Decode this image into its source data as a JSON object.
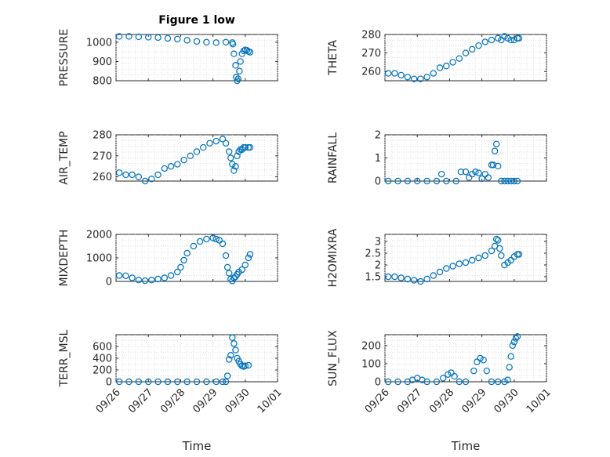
{
  "figure": {
    "title": "Figure 1 low"
  },
  "chart_data": [
    {
      "type": "scatter",
      "ylabel": "PRESSURE",
      "xlim": [
        "09/26",
        "10/01"
      ],
      "ylim": [
        800,
        1040
      ],
      "yticks": [
        800,
        900,
        1000
      ],
      "grid": true,
      "marker_color": "#0072bd",
      "series": [
        {
          "x": [
            0.1,
            0.4,
            0.7,
            1.0,
            1.3,
            1.6,
            1.9,
            2.2,
            2.5,
            2.8,
            3.1,
            3.4,
            3.6,
            3.62,
            3.65,
            3.7,
            3.72,
            3.75,
            3.78,
            3.82,
            3.85,
            3.9,
            3.95,
            4.0,
            4.05,
            4.1,
            4.15
          ],
          "y": [
            1030,
            1030,
            1028,
            1026,
            1024,
            1020,
            1016,
            1010,
            1004,
            1000,
            998,
            1000,
            998,
            990,
            940,
            880,
            820,
            800,
            810,
            850,
            900,
            940,
            955,
            960,
            958,
            952,
            948
          ]
        }
      ]
    },
    {
      "type": "scatter",
      "ylabel": "THETA",
      "xlim": [
        "09/26",
        "10/01"
      ],
      "ylim": [
        255,
        280
      ],
      "yticks": [
        260,
        270,
        280
      ],
      "grid": true,
      "marker_color": "#0072bd",
      "series": [
        {
          "x": [
            0.1,
            0.3,
            0.5,
            0.7,
            0.9,
            1.1,
            1.3,
            1.5,
            1.7,
            1.9,
            2.1,
            2.3,
            2.5,
            2.7,
            2.9,
            3.1,
            3.3,
            3.5,
            3.6,
            3.7,
            3.8,
            3.9,
            4.0,
            4.1,
            4.15
          ],
          "y": [
            259,
            259,
            258,
            257,
            256,
            256,
            257,
            259,
            262,
            263,
            265,
            267,
            270,
            272,
            274,
            276,
            277,
            278,
            277,
            279,
            278,
            277,
            277,
            278,
            278
          ]
        }
      ]
    },
    {
      "type": "scatter",
      "ylabel": "AIR_TEMP",
      "xlim": [
        "09/26",
        "10/01"
      ],
      "ylim": [
        258,
        280
      ],
      "yticks": [
        260,
        270,
        280
      ],
      "grid": true,
      "marker_color": "#0072bd",
      "series": [
        {
          "x": [
            0.1,
            0.3,
            0.5,
            0.7,
            0.9,
            1.1,
            1.3,
            1.5,
            1.7,
            1.9,
            2.1,
            2.3,
            2.5,
            2.7,
            2.9,
            3.1,
            3.3,
            3.4,
            3.5,
            3.55,
            3.6,
            3.65,
            3.7,
            3.75,
            3.8,
            3.85,
            3.9,
            3.95,
            4.0,
            4.1,
            4.15
          ],
          "y": [
            262,
            261,
            261,
            260,
            258,
            259,
            261,
            264,
            265,
            266,
            268,
            270,
            272,
            274,
            276,
            277,
            278,
            276,
            272,
            269,
            266,
            263,
            265,
            270,
            272,
            273,
            273,
            274,
            274,
            274,
            274
          ]
        }
      ]
    },
    {
      "type": "scatter",
      "ylabel": "RAINFALL",
      "xlim": [
        "09/26",
        "10/01"
      ],
      "ylim": [
        0,
        2
      ],
      "yticks": [
        0,
        1,
        2
      ],
      "grid": true,
      "marker_color": "#0072bd",
      "series": [
        {
          "x": [
            0.1,
            0.4,
            0.7,
            1.0,
            1.3,
            1.6,
            1.75,
            1.9,
            2.2,
            2.35,
            2.5,
            2.6,
            2.7,
            2.8,
            2.9,
            3.0,
            3.1,
            3.2,
            3.3,
            3.35,
            3.4,
            3.45,
            3.5,
            3.6,
            3.7,
            3.8,
            3.9,
            4.0,
            4.1
          ],
          "y": [
            0,
            0,
            0,
            0,
            0,
            0,
            0.3,
            0,
            0,
            0.4,
            0.4,
            0.15,
            0.3,
            0.4,
            0.35,
            0.1,
            0.3,
            0.15,
            0.7,
            0.7,
            1.3,
            1.6,
            0.65,
            0,
            0,
            0,
            0,
            0,
            0
          ]
        }
      ]
    },
    {
      "type": "scatter",
      "ylabel": "MIXDEPTH",
      "xlim": [
        "09/26",
        "10/01"
      ],
      "ylim": [
        0,
        2000
      ],
      "yticks": [
        0,
        1000,
        2000
      ],
      "grid": true,
      "marker_color": "#0072bd",
      "series": [
        {
          "x": [
            0.1,
            0.3,
            0.5,
            0.7,
            0.9,
            1.1,
            1.3,
            1.5,
            1.7,
            1.9,
            2.0,
            2.1,
            2.2,
            2.4,
            2.6,
            2.8,
            3.0,
            3.1,
            3.2,
            3.3,
            3.4,
            3.45,
            3.5,
            3.55,
            3.6,
            3.65,
            3.7,
            3.75,
            3.8,
            3.9,
            4.0,
            4.1,
            4.15
          ],
          "y": [
            250,
            240,
            150,
            60,
            30,
            60,
            100,
            150,
            250,
            400,
            600,
            900,
            1200,
            1500,
            1700,
            1800,
            1850,
            1800,
            1750,
            1600,
            1100,
            600,
            350,
            100,
            20,
            150,
            200,
            300,
            400,
            500,
            700,
            1000,
            1150
          ]
        }
      ]
    },
    {
      "type": "scatter",
      "ylabel": "H2OMIXRA",
      "xlim": [
        "09/26",
        "10/01"
      ],
      "ylim": [
        1.3,
        3.3
      ],
      "yticks": [
        1.5,
        2,
        2.5,
        3
      ],
      "grid": true,
      "marker_color": "#0072bd",
      "series": [
        {
          "x": [
            0.1,
            0.3,
            0.5,
            0.7,
            0.9,
            1.1,
            1.3,
            1.5,
            1.7,
            1.9,
            2.1,
            2.3,
            2.5,
            2.7,
            2.9,
            3.1,
            3.3,
            3.4,
            3.45,
            3.5,
            3.55,
            3.6,
            3.7,
            3.8,
            3.9,
            4.0,
            4.1,
            4.15
          ],
          "y": [
            1.5,
            1.5,
            1.45,
            1.4,
            1.35,
            1.3,
            1.4,
            1.55,
            1.7,
            1.85,
            1.95,
            2.05,
            2.1,
            2.2,
            2.3,
            2.4,
            2.6,
            2.8,
            3.1,
            3.05,
            2.7,
            2.4,
            2.0,
            2.1,
            2.2,
            2.35,
            2.45,
            2.45
          ]
        }
      ]
    },
    {
      "type": "scatter",
      "ylabel": "TERR_MSL",
      "xlim": [
        "09/26",
        "10/01"
      ],
      "ylim": [
        0,
        800
      ],
      "yticks": [
        0,
        200,
        400,
        600
      ],
      "grid": true,
      "marker_color": "#0072bd",
      "series": [
        {
          "x": [
            0.1,
            0.4,
            0.7,
            1.0,
            1.3,
            1.6,
            1.9,
            2.2,
            2.5,
            2.8,
            3.1,
            3.3,
            3.4,
            3.45,
            3.5,
            3.55,
            3.6,
            3.65,
            3.7,
            3.75,
            3.8,
            3.85,
            3.9,
            3.95,
            4.0,
            4.1
          ],
          "y": [
            0,
            0,
            0,
            0,
            0,
            0,
            0,
            0,
            0,
            0,
            0,
            0,
            0,
            100,
            380,
            450,
            750,
            650,
            540,
            400,
            350,
            300,
            270,
            260,
            270,
            280
          ]
        }
      ]
    },
    {
      "type": "scatter",
      "ylabel": "SUN_FLUX",
      "xlim": [
        "09/26",
        "10/01"
      ],
      "ylim": [
        0,
        260
      ],
      "yticks": [
        0,
        100,
        200
      ],
      "grid": true,
      "marker_color": "#0072bd",
      "series": [
        {
          "x": [
            0.1,
            0.4,
            0.7,
            0.85,
            1.0,
            1.15,
            1.3,
            1.6,
            1.8,
            1.95,
            2.05,
            2.15,
            2.3,
            2.5,
            2.75,
            2.85,
            2.95,
            3.05,
            3.15,
            3.3,
            3.5,
            3.7,
            3.8,
            3.85,
            3.9,
            3.95,
            4.0,
            4.05,
            4.1
          ],
          "y": [
            0,
            0,
            0,
            10,
            20,
            10,
            0,
            0,
            20,
            40,
            50,
            30,
            0,
            0,
            60,
            110,
            130,
            120,
            60,
            0,
            0,
            0,
            10,
            80,
            140,
            200,
            220,
            240,
            250
          ]
        }
      ]
    }
  ],
  "xaxis": {
    "ticks": [
      "09/26",
      "09/27",
      "09/28",
      "09/29",
      "09/30",
      "10/01"
    ],
    "label": "Time"
  }
}
